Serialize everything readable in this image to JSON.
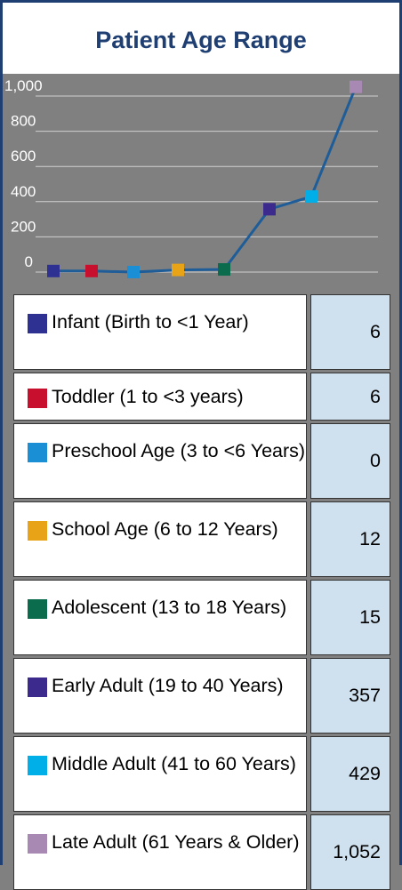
{
  "chart_data": {
    "type": "line",
    "title": "Patient Age Range",
    "categories": [
      "Infant (Birth to <1 Year)",
      "Toddler (1 to <3 years)",
      "Preschool Age (3 to <6 Years)",
      "School Age (6 to 12 Years)",
      "Adolescent (13 to 18 Years)",
      "Early Adult (19 to 40 Years)",
      "Middle Adult (41 to 60 Years)",
      "Late Adult (61 Years & Older)"
    ],
    "values": [
      6,
      6,
      0,
      12,
      15,
      357,
      429,
      1052
    ],
    "value_labels": [
      "6",
      "6",
      "0",
      "12",
      "15",
      "357",
      "429",
      "1,052"
    ],
    "colors": [
      "#2e3192",
      "#c8102e",
      "#1a8fd6",
      "#e8a317",
      "#0b6b4d",
      "#3c2a8c",
      "#00aee8",
      "#a889b4"
    ],
    "line_color": "#1f5d99",
    "ylim": [
      0,
      1000
    ],
    "yticks": [
      0,
      200,
      400,
      600,
      800,
      {
        "value": 1000,
        "label": "1,000"
      }
    ],
    "grid": true
  }
}
